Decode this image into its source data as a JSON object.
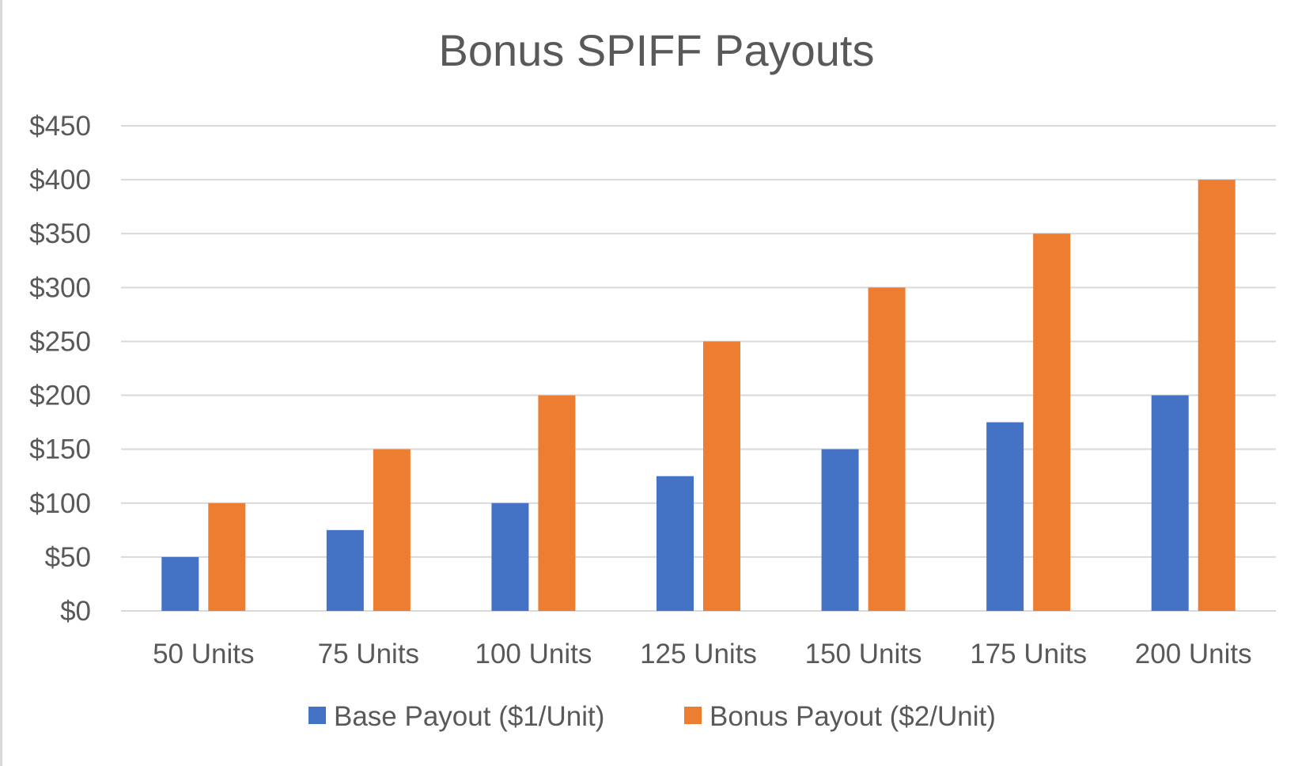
{
  "chart_data": {
    "type": "bar",
    "title": "Bonus SPIFF Payouts",
    "xlabel": "",
    "ylabel": "",
    "categories": [
      "50 Units",
      "75 Units",
      "100 Units",
      "125 Units",
      "150 Units",
      "175 Units",
      "200 Units"
    ],
    "series": [
      {
        "name": "Base Payout ($1/Unit)",
        "color": "#4472C4",
        "values": [
          50,
          75,
          100,
          125,
          150,
          175,
          200
        ]
      },
      {
        "name": "Bonus Payout ($2/Unit)",
        "color": "#ED7D31",
        "values": [
          100,
          150,
          200,
          250,
          300,
          350,
          400
        ]
      }
    ],
    "ylim": [
      0,
      450
    ],
    "y_ticks": [
      0,
      50,
      100,
      150,
      200,
      250,
      300,
      350,
      400,
      450
    ],
    "y_tick_labels": [
      "$0",
      "$50",
      "$100",
      "$150",
      "$200",
      "$250",
      "$300",
      "$350",
      "$400",
      "$450"
    ],
    "grid": true,
    "legend_position": "bottom",
    "gridline_color": "#d9d9d9",
    "text_color": "#595959"
  }
}
